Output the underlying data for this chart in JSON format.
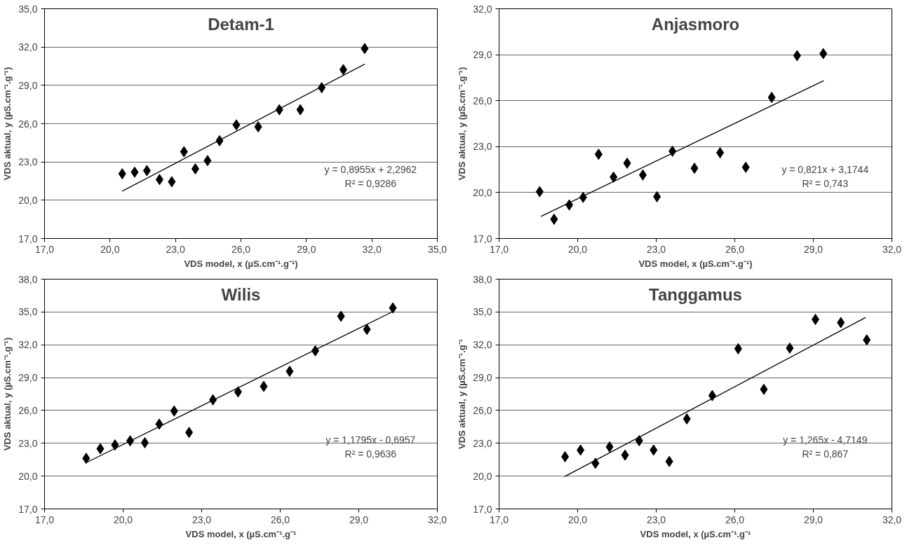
{
  "chart_data": [
    {
      "type": "scatter",
      "title": "Detam-1",
      "xlabel": "VDS model, x (µS.cm⁻¹.g⁻¹)",
      "ylabel": "VDS aktual, y (µS.cm⁻¹.g⁻¹)",
      "grid": "y",
      "xlim": [
        17,
        35
      ],
      "ylim": [
        17,
        35
      ],
      "xticks": [
        {
          "value": 17,
          "label": "17,0"
        },
        {
          "value": 20,
          "label": "20,0"
        },
        {
          "value": 23,
          "label": "23,0"
        },
        {
          "value": 26,
          "label": "26,0"
        },
        {
          "value": 29,
          "label": "29,0"
        },
        {
          "value": 32,
          "label": "32,0"
        },
        {
          "value": 35,
          "label": "35,0"
        }
      ],
      "yticks": [
        {
          "value": 17,
          "label": "17,0"
        },
        {
          "value": 20,
          "label": "20,0"
        },
        {
          "value": 23,
          "label": "23,0"
        },
        {
          "value": 26,
          "label": "26,0"
        },
        {
          "value": 29,
          "label": "29,0"
        },
        {
          "value": 32,
          "label": "32,0"
        },
        {
          "value": 35,
          "label": "35,0"
        }
      ],
      "annotations": [
        "y = 0,8955x + 2,2962",
        "R² = 0,9286"
      ],
      "series": [
        {
          "marker": "diamond",
          "color": "#000000",
          "x": [
            20.56,
            21.13,
            21.69,
            22.27,
            22.83,
            23.39,
            23.91,
            24.47,
            25.02,
            25.79,
            26.79,
            27.76,
            28.72,
            29.7,
            30.69,
            31.67
          ],
          "values": [
            22.07,
            22.2,
            22.32,
            21.62,
            21.45,
            23.8,
            22.46,
            23.1,
            24.66,
            25.9,
            25.75,
            27.09,
            27.09,
            28.82,
            30.23,
            31.88
          ]
        },
        {
          "type": "line",
          "marker": "none",
          "color": "#000000",
          "x": [
            20.56,
            31.67
          ],
          "values": [
            20.71,
            30.66
          ]
        }
      ]
    },
    {
      "type": "scatter",
      "title": "Anjasmoro",
      "xlabel": "VDS model, x (µS.cm⁻¹.g⁻¹)",
      "ylabel": "VDS aktual, y (µS.cm⁻¹.g⁻¹)",
      "grid": "y",
      "xlim": [
        17,
        32
      ],
      "ylim": [
        17,
        32
      ],
      "xticks": [
        {
          "value": 17,
          "label": "17,0"
        },
        {
          "value": 20,
          "label": "20,0"
        },
        {
          "value": 23,
          "label": "23,0"
        },
        {
          "value": 26,
          "label": "26,0"
        },
        {
          "value": 29,
          "label": "29,0"
        },
        {
          "value": 32,
          "label": "32,0"
        }
      ],
      "yticks": [
        {
          "value": 17,
          "label": "17,0"
        },
        {
          "value": 20,
          "label": "20,0"
        },
        {
          "value": 23,
          "label": "23,0"
        },
        {
          "value": 26,
          "label": "26,0"
        },
        {
          "value": 29,
          "label": "29,0"
        },
        {
          "value": 32,
          "label": "32,0"
        }
      ],
      "annotations": [
        "y = 0,821x + 3,1744",
        "R² = 0,743"
      ],
      "series": [
        {
          "marker": "diamond",
          "color": "#000000",
          "x": [
            18.55,
            19.1,
            19.68,
            20.21,
            20.8,
            21.37,
            21.89,
            22.49,
            23.03,
            23.62,
            24.46,
            25.44,
            26.42,
            27.41,
            28.38,
            29.38
          ],
          "values": [
            20.06,
            18.26,
            19.19,
            19.69,
            22.5,
            21.01,
            21.92,
            21.15,
            19.73,
            22.7,
            21.59,
            22.6,
            21.65,
            26.21,
            28.94,
            29.07
          ]
        },
        {
          "type": "line",
          "marker": "none",
          "color": "#000000",
          "x": [
            18.6,
            29.4
          ],
          "values": [
            18.45,
            27.31
          ]
        }
      ]
    },
    {
      "type": "scatter",
      "title": "Wilis",
      "xlabel": "VDS model, x (µS.cm⁻¹.g⁻¹",
      "ylabel": "VDS aktual, y (µS.cm⁻¹.g⁻¹)",
      "grid": "y",
      "xlim": [
        17,
        32
      ],
      "ylim": [
        17,
        38
      ],
      "xticks": [
        {
          "value": 17,
          "label": "17,0"
        },
        {
          "value": 20,
          "label": "20,0"
        },
        {
          "value": 23,
          "label": "23,0"
        },
        {
          "value": 26,
          "label": "26,0"
        },
        {
          "value": 29,
          "label": "29,0"
        },
        {
          "value": 32,
          "label": "32,0"
        }
      ],
      "yticks": [
        {
          "value": 17,
          "label": "17,0"
        },
        {
          "value": 20,
          "label": "20,0"
        },
        {
          "value": 23,
          "label": "23,0"
        },
        {
          "value": 26,
          "label": "26,0"
        },
        {
          "value": 29,
          "label": "29,0"
        },
        {
          "value": 32,
          "label": "32,0"
        },
        {
          "value": 35,
          "label": "35,0"
        },
        {
          "value": 38,
          "label": "38,0"
        }
      ],
      "annotations": [
        "y = 1,1795x - 0,6957",
        "R² = 0,9636"
      ],
      "series": [
        {
          "marker": "diamond",
          "color": "#000000",
          "x": [
            18.59,
            19.13,
            19.69,
            20.27,
            20.83,
            21.38,
            21.95,
            22.52,
            23.43,
            24.39,
            25.37,
            26.36,
            27.34,
            28.32,
            29.31,
            30.3
          ],
          "values": [
            21.62,
            22.5,
            22.85,
            23.23,
            23.05,
            24.75,
            25.95,
            23.99,
            26.97,
            27.7,
            28.2,
            29.58,
            31.45,
            34.61,
            33.41,
            35.37
          ]
        },
        {
          "type": "line",
          "marker": "none",
          "color": "#000000",
          "x": [
            18.6,
            30.3
          ],
          "values": [
            21.24,
            35.04
          ]
        }
      ]
    },
    {
      "type": "scatter",
      "title": "Tanggamus",
      "xlabel": "VDS model, x (µS.cm⁻¹.g⁻¹",
      "ylabel": "VDS aktual, y (µS.cm⁻¹.g⁻¹",
      "grid": "y",
      "xlim": [
        17,
        32
      ],
      "ylim": [
        17,
        38
      ],
      "xticks": [
        {
          "value": 17,
          "label": "17,0"
        },
        {
          "value": 20,
          "label": "20,0"
        },
        {
          "value": 23,
          "label": "23,0"
        },
        {
          "value": 26,
          "label": "26,0"
        },
        {
          "value": 29,
          "label": "29,0"
        },
        {
          "value": 32,
          "label": "32,0"
        }
      ],
      "yticks": [
        {
          "value": 17,
          "label": "17,0"
        },
        {
          "value": 20,
          "label": "20,0"
        },
        {
          "value": 23,
          "label": "23,0"
        },
        {
          "value": 26,
          "label": "26,0"
        },
        {
          "value": 29,
          "label": "29,0"
        },
        {
          "value": 32,
          "label": "32,0"
        },
        {
          "value": 35,
          "label": "35,0"
        },
        {
          "value": 38,
          "label": "38,0"
        }
      ],
      "annotations": [
        "y = 1,265x - 4,7149",
        "R² = 0,867"
      ],
      "series": [
        {
          "marker": "diamond",
          "color": "#000000",
          "x": [
            19.52,
            20.11,
            20.68,
            21.22,
            21.81,
            22.35,
            22.9,
            23.5,
            24.17,
            25.14,
            26.13,
            27.11,
            28.1,
            29.08,
            30.05,
            31.04
          ],
          "values": [
            21.77,
            22.38,
            21.17,
            22.67,
            21.92,
            23.24,
            22.38,
            21.34,
            25.23,
            27.36,
            31.64,
            27.93,
            31.7,
            34.32,
            34.03,
            32.45
          ]
        },
        {
          "type": "line",
          "marker": "none",
          "color": "#000000",
          "x": [
            19.5,
            31.0
          ],
          "values": [
            19.95,
            34.5
          ]
        }
      ]
    }
  ]
}
